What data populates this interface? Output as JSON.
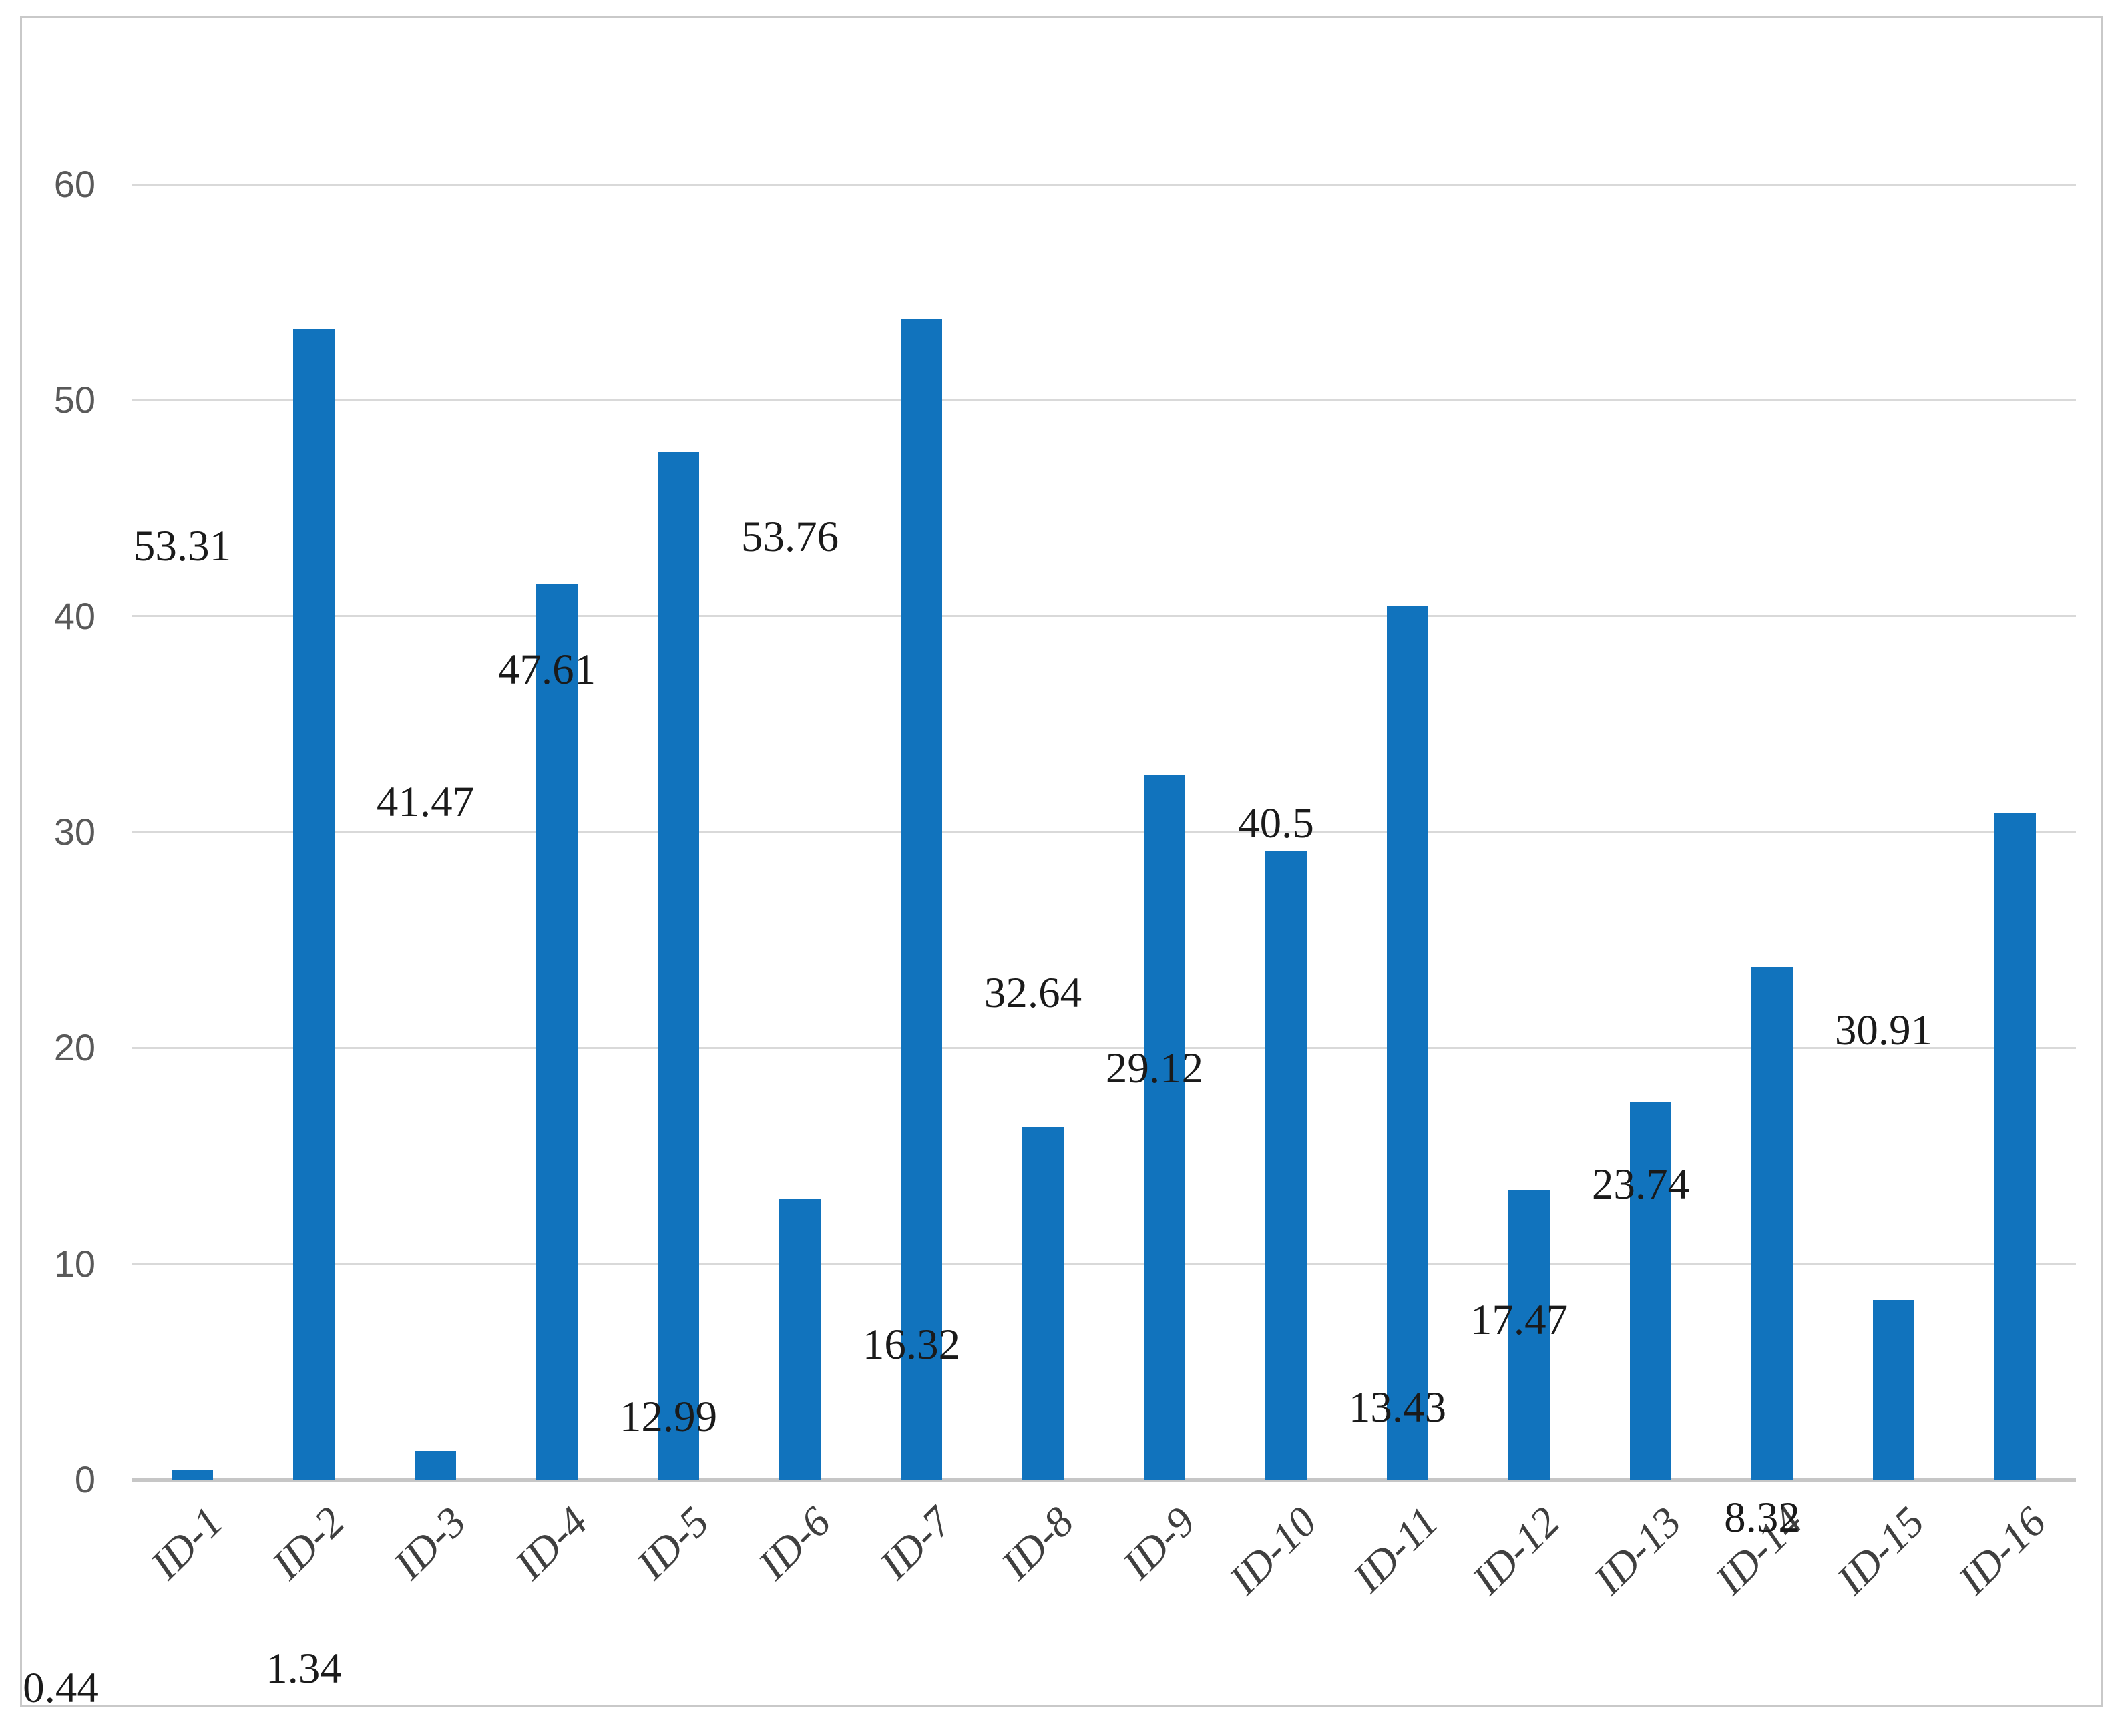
{
  "chart_data": {
    "type": "bar",
    "title": "",
    "xlabel": "",
    "ylabel": "",
    "categories": [
      "ID-1",
      "ID-2",
      "ID-3",
      "ID-4",
      "ID-5",
      "ID-6",
      "ID-7",
      "ID-8",
      "ID-9",
      "ID-10",
      "ID-11",
      "ID-12",
      "ID-13",
      "ID-14",
      "ID-15",
      "ID-16"
    ],
    "values": [
      0.44,
      53.31,
      1.34,
      41.47,
      47.61,
      12.99,
      53.76,
      16.32,
      32.64,
      29.12,
      40.5,
      13.43,
      17.47,
      23.74,
      8.32,
      30.91
    ],
    "data_labels": [
      "0.44",
      "53.31",
      "1.34",
      "41.47",
      "47.61",
      "12.99",
      "53.76",
      "16.32",
      "32.64",
      "29.12",
      "40.5",
      "13.43",
      "17.47",
      "23.74",
      "8.32",
      "30.91"
    ],
    "ylim": [
      0,
      60
    ],
    "yticks": [
      0,
      10,
      20,
      30,
      40,
      50,
      60
    ],
    "grid": true,
    "legend_position": "none"
  },
  "colors": {
    "bar": "#1173bd",
    "gridline": "#d9d9d9",
    "axis_line": "#c6c6c6",
    "y_tick_label": "#595959",
    "x_tick_label": "#3f3f3f",
    "data_label": "#1a1a1a",
    "frame_border": "#c9c9c9",
    "background": "#ffffff"
  }
}
